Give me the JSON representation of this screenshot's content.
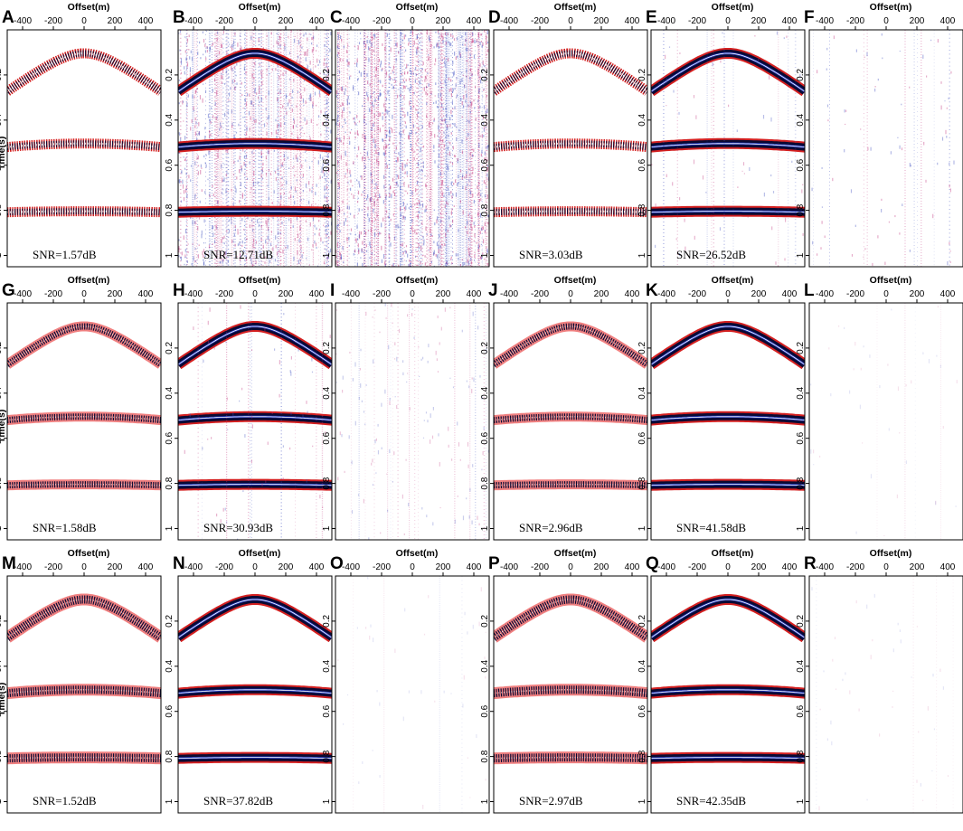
{
  "figure": {
    "x_axis_title": "Offset(m)",
    "y_axis_title": "Time(s)",
    "x_ticks": [
      -400,
      -200,
      0,
      200,
      400
    ],
    "y_ticks": [
      0.2,
      0.4,
      0.6,
      0.8,
      1
    ],
    "colors": {
      "positive": "#d42020",
      "negative": "#1a2fb0",
      "core": "#0a0a33",
      "noise_pos": "#c0307a",
      "noise_neg": "#4050c0"
    },
    "rows": [
      {
        "panels": [
          {
            "letter": "A",
            "snr": "SNR=1.57dB",
            "kind": "striped"
          },
          {
            "letter": "B",
            "snr": "SNR=12.71dB",
            "kind": "smooth_noisy"
          },
          {
            "letter": "C",
            "snr": "",
            "kind": "residual_heavy"
          },
          {
            "letter": "D",
            "snr": "SNR=3.03dB",
            "kind": "striped"
          },
          {
            "letter": "E",
            "snr": "SNR=26.52dB",
            "kind": "smooth_light"
          },
          {
            "letter": "F",
            "snr": "",
            "kind": "residual_light"
          }
        ]
      },
      {
        "panels": [
          {
            "letter": "G",
            "snr": "SNR=1.58dB",
            "kind": "speckled"
          },
          {
            "letter": "H",
            "snr": "SNR=30.93dB",
            "kind": "smooth_light"
          },
          {
            "letter": "I",
            "snr": "",
            "kind": "residual_medium"
          },
          {
            "letter": "J",
            "snr": "SNR=2.96dB",
            "kind": "speckled"
          },
          {
            "letter": "K",
            "snr": "SNR=41.58dB",
            "kind": "smooth_clean"
          },
          {
            "letter": "L",
            "snr": "",
            "kind": "residual_faint"
          }
        ]
      },
      {
        "panels": [
          {
            "letter": "M",
            "snr": "SNR=1.52dB",
            "kind": "speckled_heavy"
          },
          {
            "letter": "N",
            "snr": "SNR=37.82dB",
            "kind": "smooth_clean"
          },
          {
            "letter": "O",
            "snr": "",
            "kind": "residual_faint"
          },
          {
            "letter": "P",
            "snr": "SNR=2.97dB",
            "kind": "speckled_heavy"
          },
          {
            "letter": "Q",
            "snr": "SNR=42.35dB",
            "kind": "smooth_clean"
          },
          {
            "letter": "R",
            "snr": "",
            "kind": "residual_faint"
          }
        ]
      }
    ]
  },
  "chart_data": {
    "type": "scatter",
    "x_range": [
      -500,
      500
    ],
    "y_range": [
      0,
      1.05
    ],
    "events": [
      {
        "t0": 0.1,
        "velocity": 2000
      },
      {
        "t0": 0.5,
        "velocity": 4000
      },
      {
        "t0": 0.8,
        "velocity": 6000
      }
    ]
  }
}
